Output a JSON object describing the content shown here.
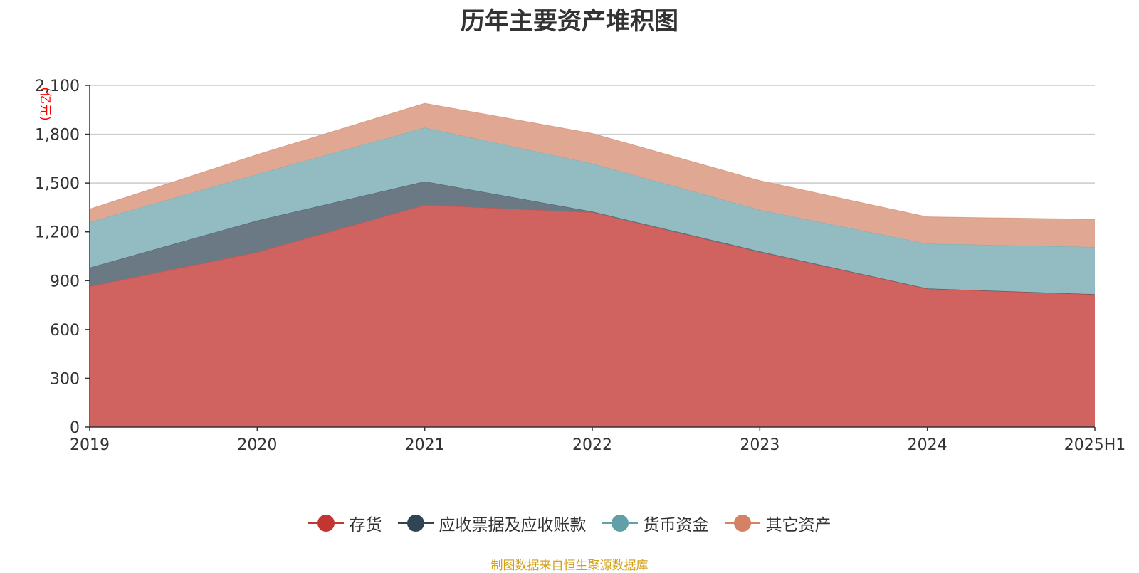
{
  "chart_data": {
    "type": "area",
    "stacked": true,
    "title": "历年主要资产堆积图",
    "ylabel": "(亿元)",
    "xlabel": "",
    "categories": [
      "2019",
      "2020",
      "2021",
      "2022",
      "2023",
      "2024",
      "2025H1"
    ],
    "ylim": [
      0,
      2100
    ],
    "yticks": [
      0,
      300,
      600,
      900,
      1200,
      1500,
      1800,
      2100
    ],
    "ytick_labels": [
      "0",
      "300",
      "600",
      "900",
      "1,200",
      "1,500",
      "1,800",
      "2,100"
    ],
    "grid": true,
    "legend_position": "bottom-center",
    "series": [
      {
        "name": "存货",
        "color": "#d0635f",
        "line_color": "#c23531",
        "values": [
          865,
          1075,
          1365,
          1320,
          1075,
          850,
          815
        ]
      },
      {
        "name": "应收票据及应收账款",
        "color": "#6b7984",
        "line_color": "#2f4554",
        "values": [
          115,
          195,
          145,
          5,
          5,
          2,
          2
        ]
      },
      {
        "name": "货币资金",
        "color": "#92bcc1",
        "line_color": "#61a0a8",
        "values": [
          280,
          285,
          330,
          295,
          255,
          275,
          290
        ]
      },
      {
        "name": "其它资产",
        "color": "#e0a893",
        "line_color": "#d48265",
        "values": [
          80,
          120,
          150,
          185,
          180,
          165,
          170
        ]
      }
    ]
  },
  "source_note": "制图数据来自恒生聚源数据库"
}
